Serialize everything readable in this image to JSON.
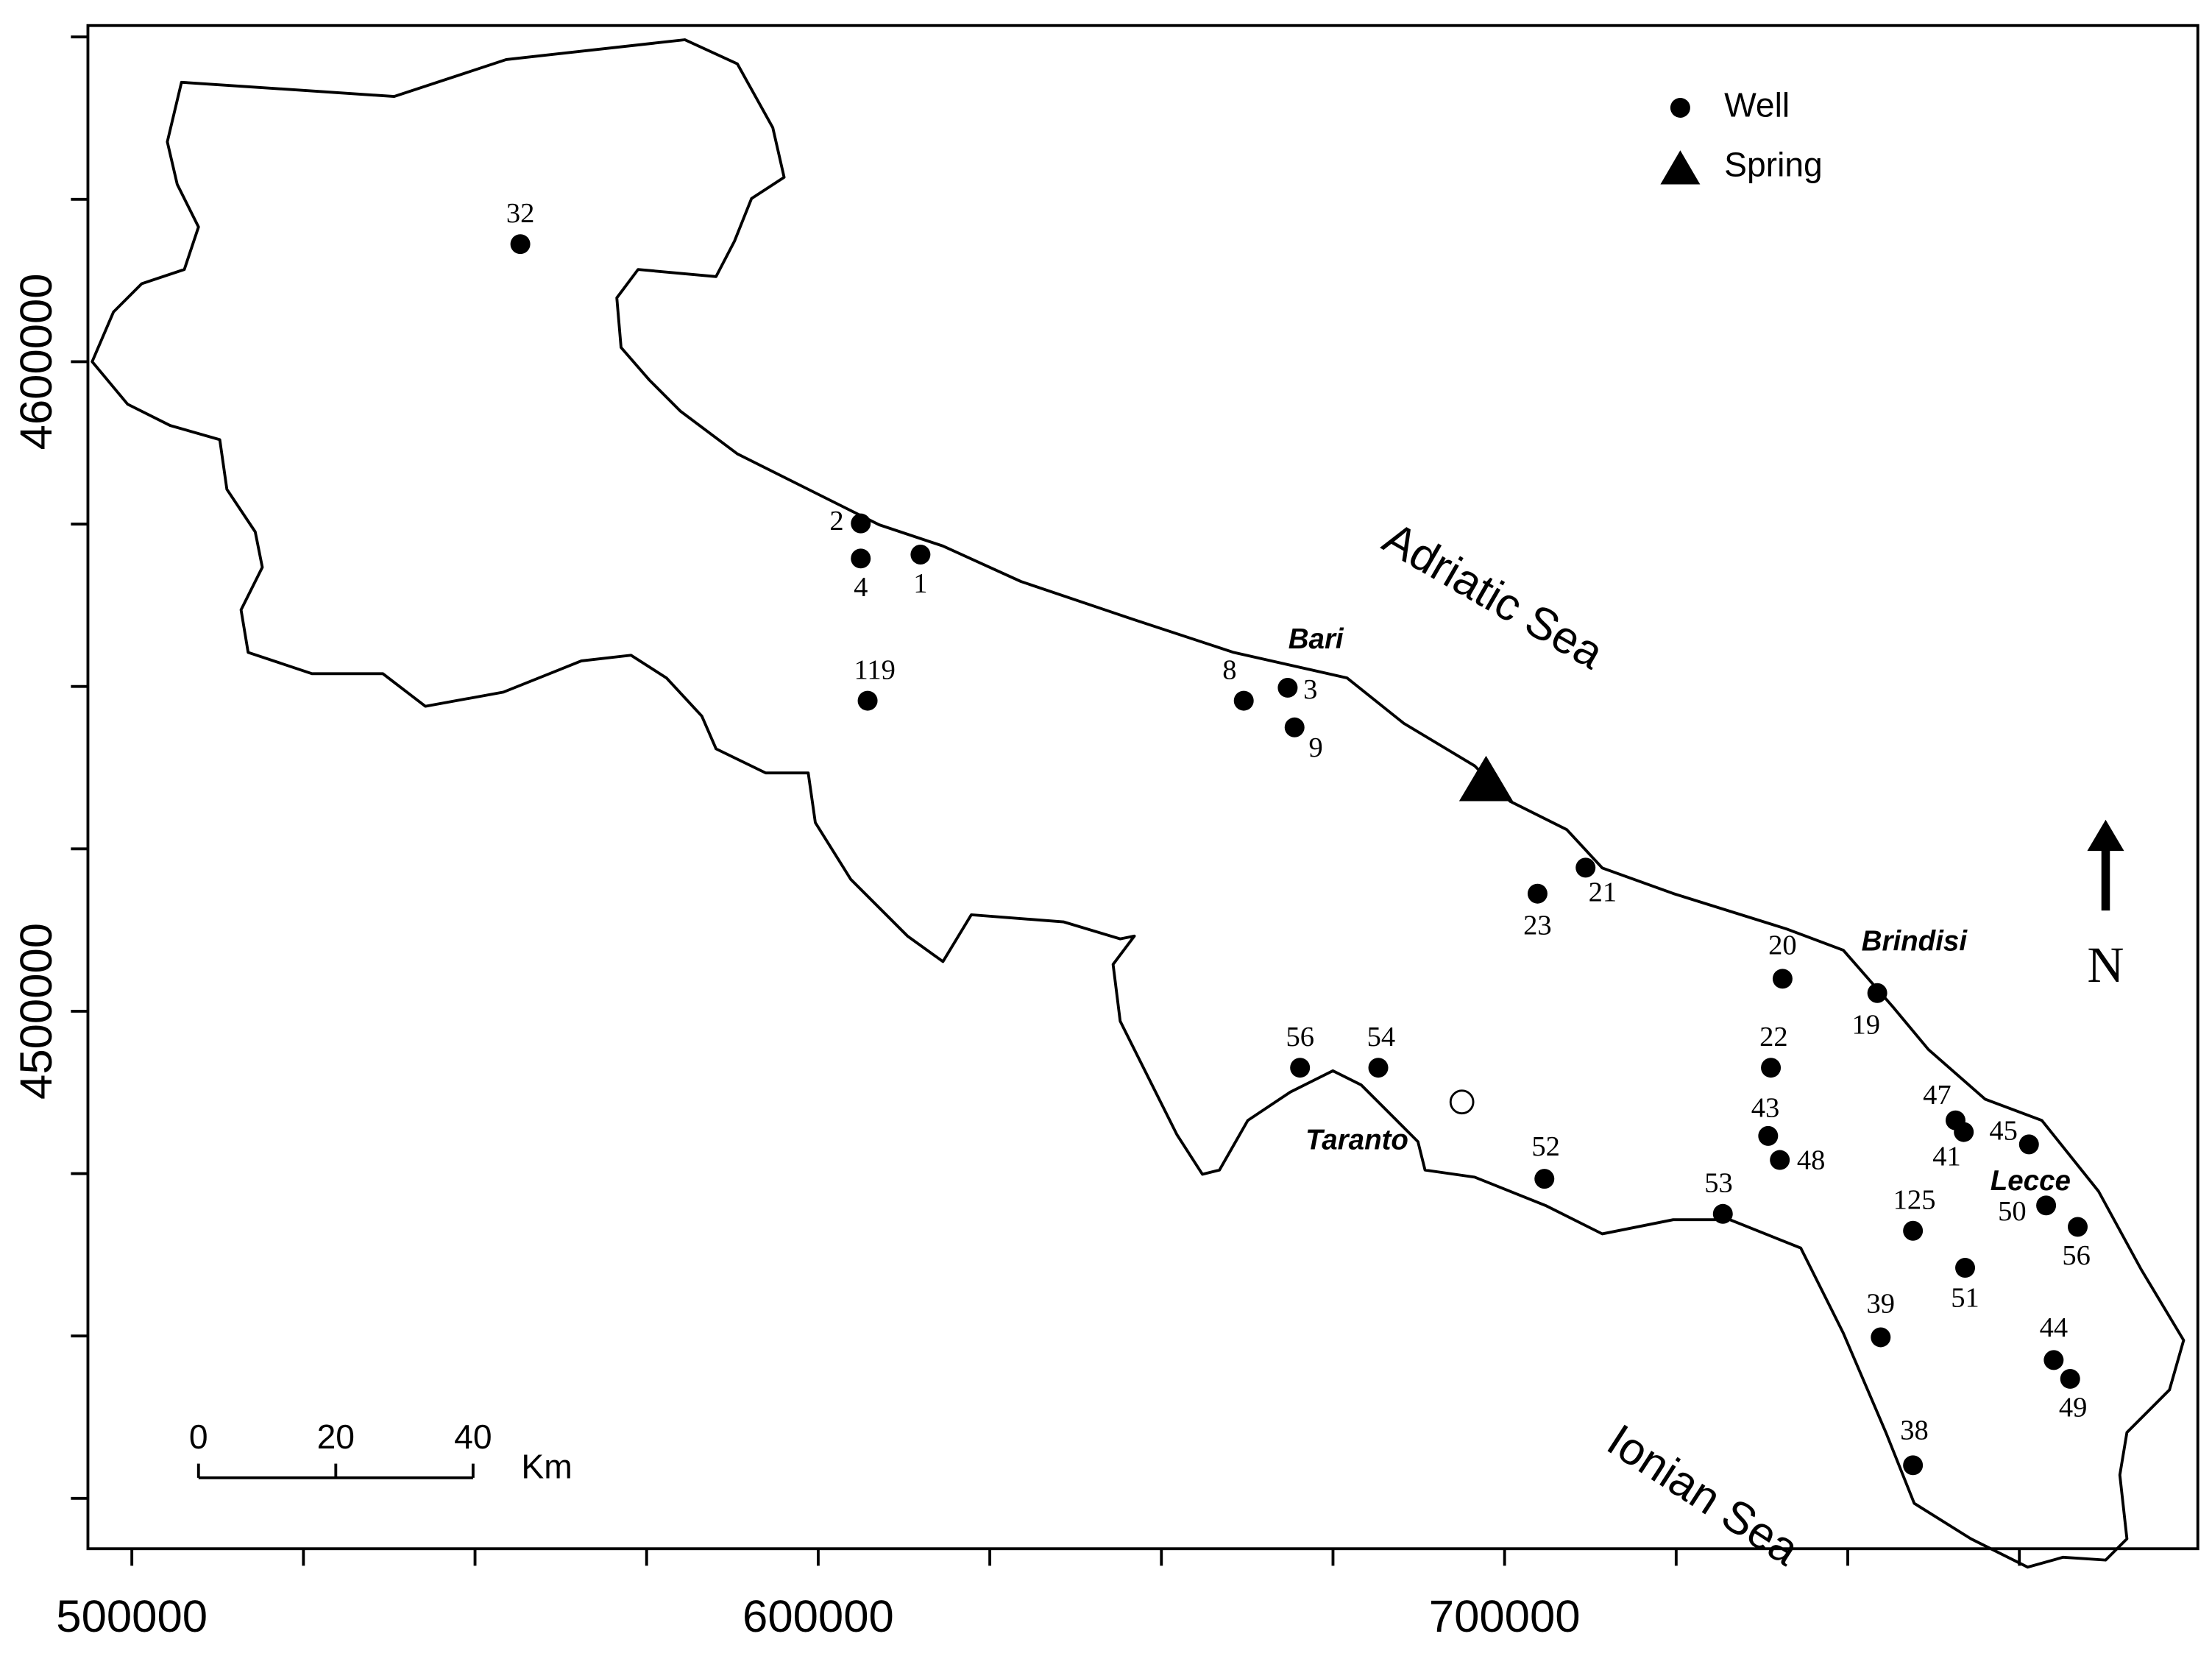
{
  "chart_data": {
    "type": "scatter",
    "xlim": [
      493600,
      801000
    ],
    "ylim": [
      4417250,
      4651750
    ],
    "xticks": [
      500000,
      600000,
      700000
    ],
    "yticks": [
      4500000,
      4600000
    ],
    "minor_xticks": [
      525000,
      550000,
      575000,
      625000,
      650000,
      675000,
      725000,
      750000,
      775000
    ],
    "minor_yticks": [
      4425000,
      4450000,
      4475000,
      4525000,
      4550000,
      4575000,
      4625000,
      4650000
    ],
    "series": [
      {
        "name": "Well",
        "color": "#000000",
        "marker": "circle",
        "x": [
          556600,
          606200,
          606200,
          614900,
          607200,
          662000,
          668400,
          669400,
          711800,
          704800,
          740500,
          754300,
          738800,
          670200,
          681600,
          738400,
          740100,
          705800,
          731800,
          765700,
          766900,
          776400,
          778900,
          783500,
          759500,
          767100,
          754800,
          780000,
          782400,
          759500
        ],
        "y": [
          4618100,
          4575100,
          4569700,
          4570300,
          4547800,
          4547800,
          4549800,
          4543700,
          4522100,
          4518100,
          4505000,
          4502800,
          4491300,
          4491300,
          4491300,
          4480800,
          4477100,
          4474200,
          4468800,
          4483200,
          4481400,
          4479500,
          4470100,
          4466800,
          4466200,
          4460500,
          4449800,
          4446300,
          4443400,
          4430100
        ],
        "labels": [
          "32",
          "2",
          "4",
          "1",
          "119",
          "8",
          "3",
          "9",
          "21",
          "23",
          "20",
          "19",
          "22",
          "56",
          "54",
          "43",
          "48",
          "52",
          "53",
          "47",
          "41",
          "45",
          "50",
          "56",
          "125",
          "51",
          "39",
          "44",
          "49",
          "38"
        ]
      },
      {
        "name": "Spring",
        "color": "#000000",
        "marker": "triangle",
        "x": [
          697300
        ],
        "y": [
          4535400
        ]
      }
    ],
    "places": [
      "Bari",
      "Brindisi",
      "Taranto",
      "Lecce"
    ],
    "seas": [
      "Adriatic Sea",
      "Ionian Sea"
    ],
    "north_label": "N",
    "scale_bar": {
      "ticks": [
        0,
        20,
        40
      ],
      "unit": "Km"
    }
  }
}
